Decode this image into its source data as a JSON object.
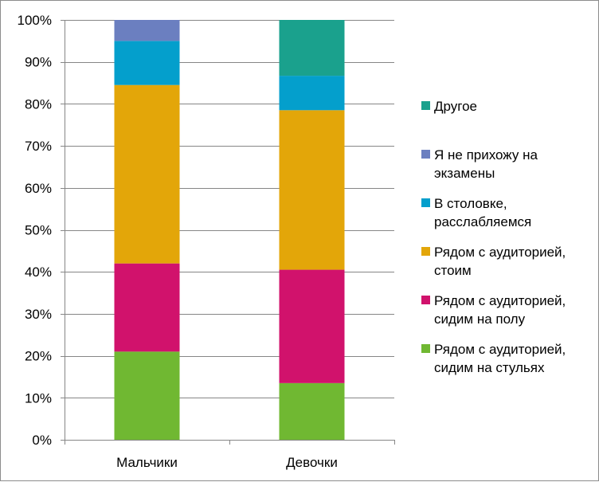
{
  "chart_data": {
    "type": "bar",
    "stacked": true,
    "percent": true,
    "categories": [
      "Мальчики",
      "Девочки"
    ],
    "series": [
      {
        "name": "Рядом с аудиторией, сидим на стульях",
        "color": "#70b832",
        "values": [
          21,
          13.5
        ]
      },
      {
        "name": "Рядом с аудиторией, сидим на полу",
        "color": "#d1126c",
        "values": [
          21,
          27
        ]
      },
      {
        "name": "Рядом с аудиторией, стоим",
        "color": "#e3a609",
        "values": [
          42.5,
          38
        ]
      },
      {
        "name": "В столовке, расслабляемся",
        "color": "#049fcc",
        "values": [
          10.5,
          8.2
        ]
      },
      {
        "name": "Я не прихожу на экзамены",
        "color": "#6b7fc0",
        "values": [
          5,
          0
        ]
      },
      {
        "name": "Другое",
        "color": "#1aa18d",
        "values": [
          0,
          13.3
        ]
      }
    ],
    "legend_order": [
      "Другое",
      "Я не прихожу на экзамены",
      "В столовке, расслабляемся",
      "Рядом с аудиторией, стоим",
      "Рядом с аудиторией, сидим на полу",
      "Рядом с аудиторией, сидим на стульях"
    ],
    "legend_lines": {
      "Другое": [
        "Другое"
      ],
      "Я не прихожу на экзамены": [
        "Я не прихожу на",
        "экзамены"
      ],
      "В столовке, расслабляемся": [
        "В столовке,",
        "расслабляемся"
      ],
      "Рядом с аудиторией, стоим": [
        "Рядом с аудиторией,",
        "стоим"
      ],
      "Рядом с аудиторией, сидим на полу": [
        "Рядом с аудиторией,",
        "сидим на полу"
      ],
      "Рядом с аудиторией, сидим на стульях": [
        "Рядом с аудиторией,",
        "сидим на стульях"
      ]
    },
    "y_ticks": [
      "0%",
      "10%",
      "20%",
      "30%",
      "40%",
      "50%",
      "60%",
      "70%",
      "80%",
      "90%",
      "100%"
    ],
    "ylim": [
      0,
      100
    ],
    "grid": true,
    "legend_position": "right",
    "title": "",
    "xlabel": "",
    "ylabel": ""
  }
}
